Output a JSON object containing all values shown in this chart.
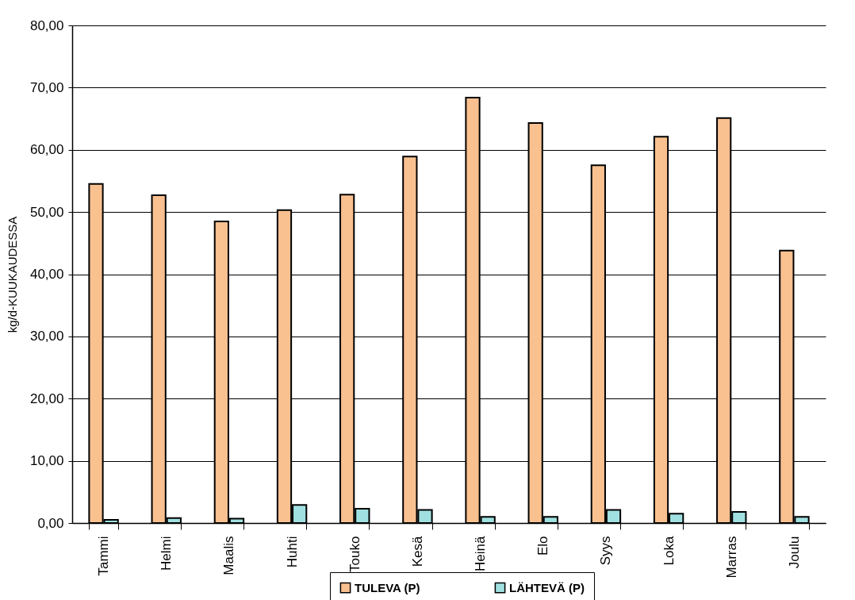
{
  "chart_data": {
    "type": "bar",
    "ylabel": "kg/d-KUUKAUDESSA",
    "categories": [
      "Tammi",
      "Helmi",
      "Maalis",
      "Huhti",
      "Touko",
      "Kesä",
      "Heinä",
      "Elo",
      "Syys",
      "Loka",
      "Marras",
      "Joulu"
    ],
    "series": [
      {
        "name": "TULEVA (P)",
        "color": "#f9c090",
        "values": [
          54.5,
          52.7,
          48.5,
          50.3,
          52.8,
          58.9,
          68.4,
          64.3,
          57.5,
          62.1,
          65.1,
          43.8
        ]
      },
      {
        "name": "LÄHTEVÄ (P)",
        "color": "#a0e0e0",
        "values": [
          0.5,
          0.8,
          0.7,
          2.9,
          2.3,
          2.1,
          1.0,
          1.0,
          2.1,
          1.5,
          1.8,
          1.0
        ]
      }
    ],
    "ylim": [
      0,
      80
    ],
    "yticks": [
      {
        "value": 0,
        "label": "0,00"
      },
      {
        "value": 10,
        "label": "10,00"
      },
      {
        "value": 20,
        "label": "20,00"
      },
      {
        "value": 30,
        "label": "30,00"
      },
      {
        "value": 40,
        "label": "40,00"
      },
      {
        "value": 50,
        "label": "50,00"
      },
      {
        "value": 60,
        "label": "60,00"
      },
      {
        "value": 70,
        "label": "70,00"
      },
      {
        "value": 80,
        "label": "80,00"
      }
    ],
    "grid": "y",
    "legend": "bottom"
  }
}
